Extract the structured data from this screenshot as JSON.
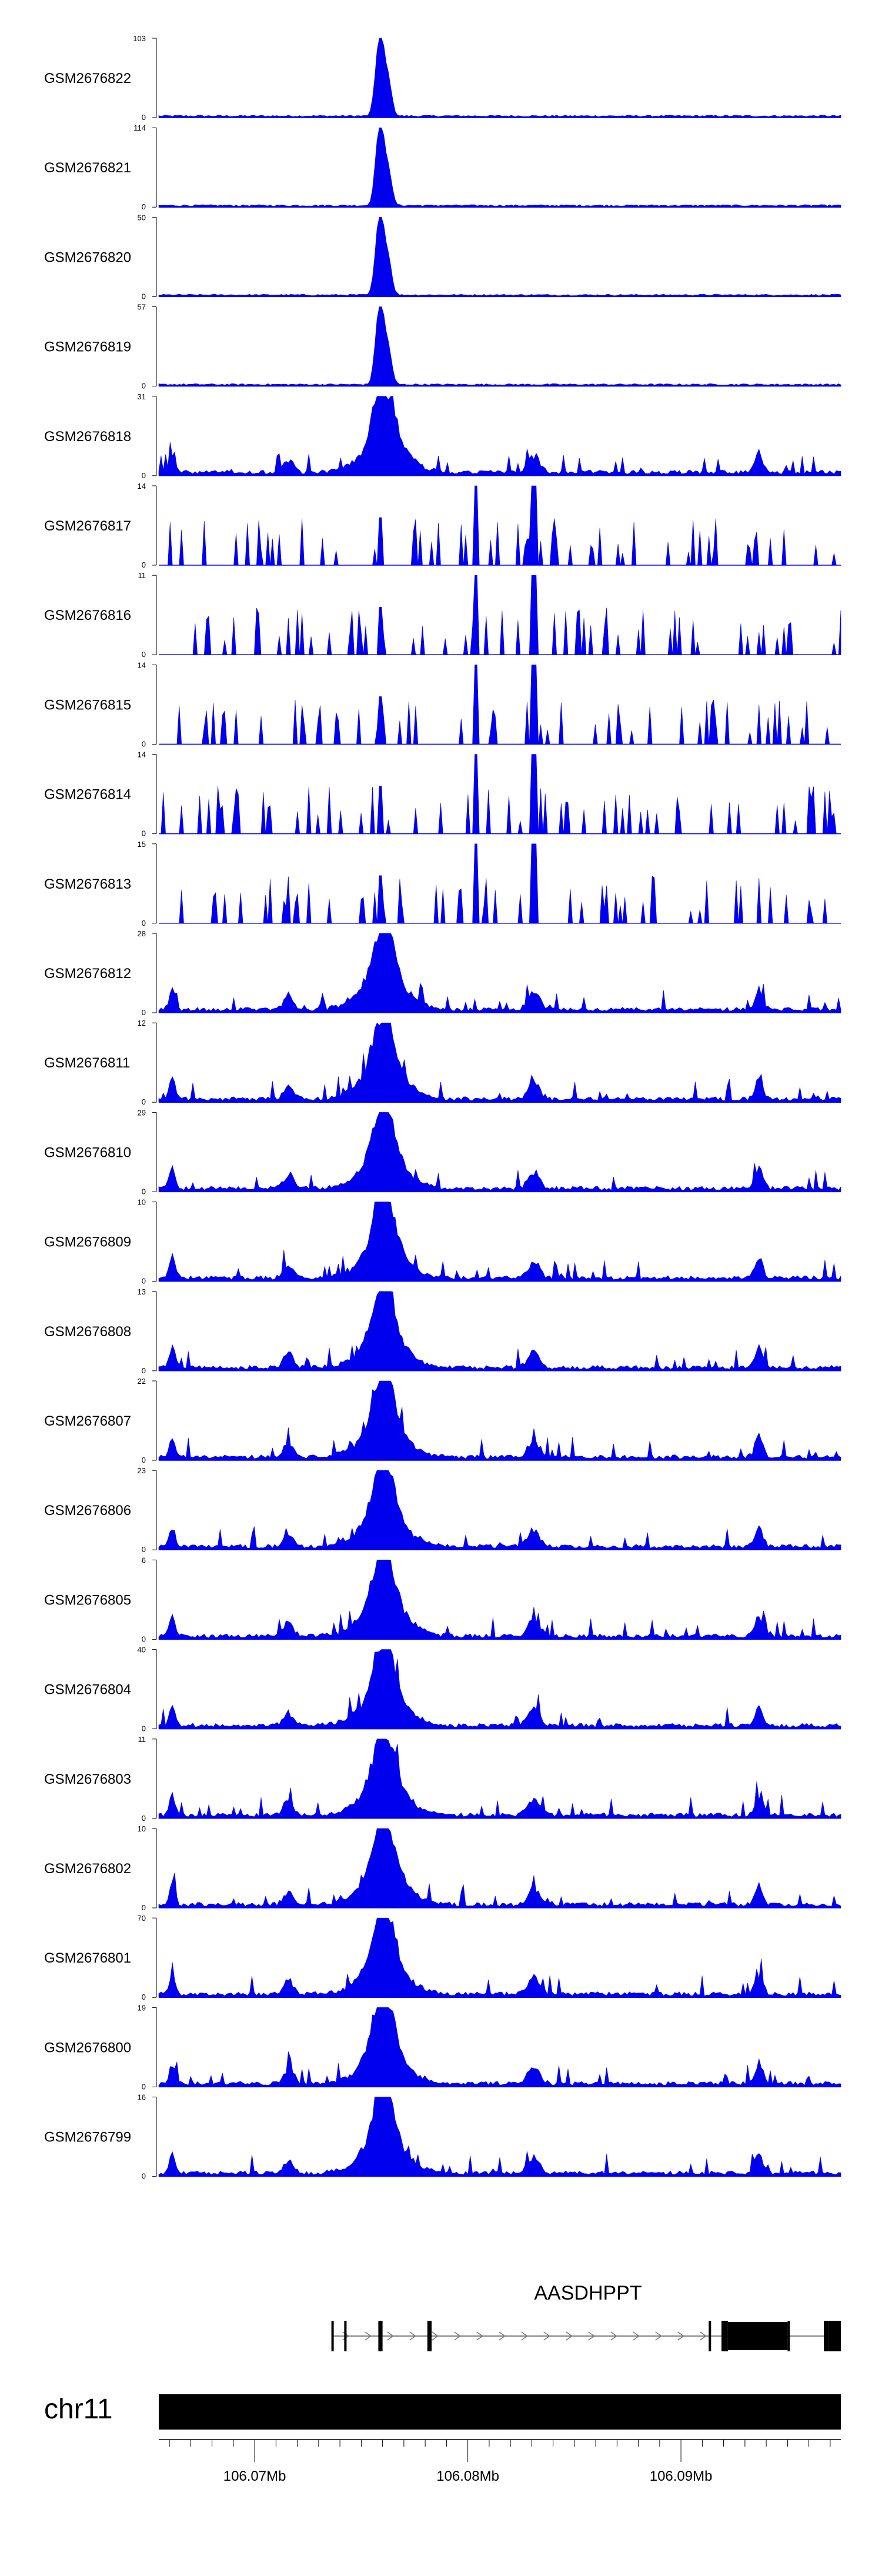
{
  "chart_data": {
    "type": "area",
    "title": "",
    "fill_color": "#0000ee",
    "xlim": [
      106.0655,
      106.0975
    ],
    "x_unit": "Mb",
    "samples": [
      {
        "name": "GSM2676822",
        "ymax": "103",
        "ymin": "0",
        "peak": 103
      },
      {
        "name": "GSM2676821",
        "ymax": "114",
        "ymin": "0",
        "peak": 114
      },
      {
        "name": "GSM2676820",
        "ymax": "50",
        "ymin": "0",
        "peak": 50
      },
      {
        "name": "GSM2676819",
        "ymax": "57",
        "ymin": "0",
        "peak": 57
      },
      {
        "name": "GSM2676818",
        "ymax": "31",
        "ymin": "0",
        "peak": 31
      },
      {
        "name": "GSM2676817",
        "ymax": "14",
        "ymin": "0",
        "peak": 14
      },
      {
        "name": "GSM2676816",
        "ymax": "11",
        "ymin": "0",
        "peak": 11
      },
      {
        "name": "GSM2676815",
        "ymax": "14",
        "ymin": "0",
        "peak": 14
      },
      {
        "name": "GSM2676814",
        "ymax": "14",
        "ymin": "0",
        "peak": 14
      },
      {
        "name": "GSM2676813",
        "ymax": "15",
        "ymin": "0",
        "peak": 15
      },
      {
        "name": "GSM2676812",
        "ymax": "28",
        "ymin": "0",
        "peak": 28
      },
      {
        "name": "GSM2676811",
        "ymax": "12",
        "ymin": "0",
        "peak": 12
      },
      {
        "name": "GSM2676810",
        "ymax": "29",
        "ymin": "0",
        "peak": 29
      },
      {
        "name": "GSM2676809",
        "ymax": "10",
        "ymin": "0",
        "peak": 10
      },
      {
        "name": "GSM2676808",
        "ymax": "13",
        "ymin": "0",
        "peak": 13
      },
      {
        "name": "GSM2676807",
        "ymax": "22",
        "ymin": "0",
        "peak": 22
      },
      {
        "name": "GSM2676806",
        "ymax": "23",
        "ymin": "0",
        "peak": 23
      },
      {
        "name": "GSM2676805",
        "ymax": "6",
        "ymin": "0",
        "peak": 6
      },
      {
        "name": "GSM2676804",
        "ymax": "40",
        "ymin": "0",
        "peak": 40
      },
      {
        "name": "GSM2676803",
        "ymax": "11",
        "ymin": "0",
        "peak": 11
      },
      {
        "name": "GSM2676802",
        "ymax": "10",
        "ymin": "0",
        "peak": 10
      },
      {
        "name": "GSM2676801",
        "ymax": "70",
        "ymin": "0",
        "peak": 70
      },
      {
        "name": "GSM2676800",
        "ymax": "19",
        "ymin": "0",
        "peak": 19
      },
      {
        "name": "GSM2676799",
        "ymax": "16",
        "ymin": "0",
        "peak": 16
      }
    ],
    "gene": {
      "name": "AASDHPPT",
      "strand": "+",
      "start": 106.0736,
      "end": 106.0975,
      "exons": [
        {
          "start": 106.0736,
          "end": 106.07365
        },
        {
          "start": 106.0742,
          "end": 106.07425
        },
        {
          "start": 106.0758,
          "end": 106.076
        },
        {
          "start": 106.0781,
          "end": 106.0783
        },
        {
          "start": 106.0913,
          "end": 106.0914
        },
        {
          "start": 106.0919,
          "end": 106.0922
        },
        {
          "start": 106.0922,
          "end": 106.095
        },
        {
          "start": 106.095,
          "end": 106.0951
        },
        {
          "start": 106.0967,
          "end": 106.0969
        },
        {
          "start": 106.0969,
          "end": 106.0975
        }
      ]
    },
    "chromosome": "chr11",
    "axis_ticks": [
      {
        "value": 106.07,
        "label": "106.07Mb"
      },
      {
        "value": 106.08,
        "label": "106.08Mb"
      },
      {
        "value": 106.09,
        "label": "106.09Mb"
      }
    ]
  }
}
